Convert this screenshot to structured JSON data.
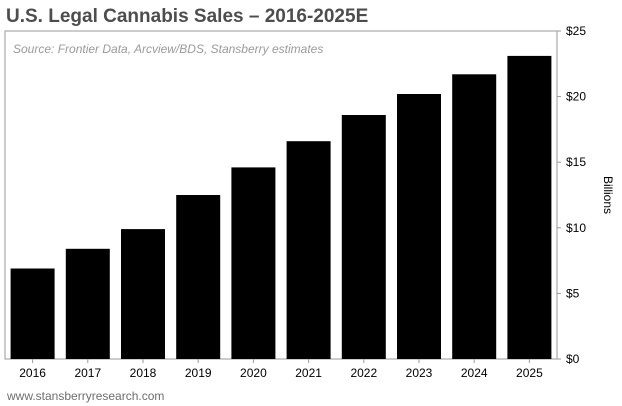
{
  "chart_data": {
    "type": "bar",
    "title": "U.S. Legal Cannabis Sales – 2016-2025E",
    "source": "Source: Frontier Data, Arcview/BDS, Stansberry estimates",
    "categories": [
      "2016",
      "2017",
      "2018",
      "2019",
      "2020",
      "2021",
      "2022",
      "2023",
      "2024",
      "2025"
    ],
    "values": [
      6.9,
      8.4,
      9.9,
      12.5,
      14.6,
      16.6,
      18.6,
      20.2,
      21.7,
      23.1
    ],
    "ylabel": "Billions",
    "ylim": [
      0,
      25
    ],
    "yticks": [
      0,
      5,
      10,
      15,
      20,
      25
    ],
    "ytick_labels": [
      "$0",
      "$5",
      "$10",
      "$15",
      "$20",
      "$25"
    ],
    "y_axis_side": "right",
    "grid": false,
    "legend": "none",
    "bar_color": "#000000",
    "footer": "www.stansberryresearch.com"
  }
}
